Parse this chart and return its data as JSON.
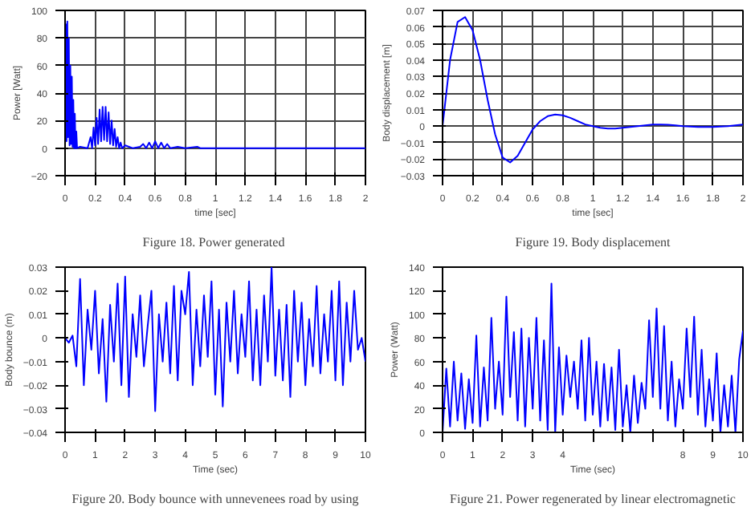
{
  "chart_data": [
    {
      "type": "line",
      "title": "Figure 18.  Power generated",
      "xlabel": "time [sec]",
      "ylabel": "Power [Watt]",
      "xlim": [
        0,
        2
      ],
      "ylim": [
        -20,
        100
      ],
      "xticks": [
        0,
        0.2,
        0.4,
        0.6,
        0.8,
        1,
        1.2,
        1.4,
        1.6,
        1.8,
        2
      ],
      "yticks": [
        -20,
        0,
        20,
        40,
        60,
        80,
        100
      ],
      "grid": true,
      "series": [
        {
          "color": "#0000ff",
          "x": [
            0,
            0.005,
            0.01,
            0.015,
            0.02,
            0.025,
            0.03,
            0.035,
            0.04,
            0.045,
            0.05,
            0.055,
            0.06,
            0.065,
            0.07,
            0.075,
            0.08,
            0.1,
            0.15,
            0.17,
            0.18,
            0.19,
            0.2,
            0.21,
            0.22,
            0.23,
            0.24,
            0.25,
            0.26,
            0.27,
            0.28,
            0.29,
            0.3,
            0.31,
            0.32,
            0.33,
            0.34,
            0.35,
            0.36,
            0.37,
            0.38,
            0.4,
            0.45,
            0.5,
            0.52,
            0.54,
            0.56,
            0.58,
            0.6,
            0.62,
            0.64,
            0.66,
            0.68,
            0.7,
            0.75,
            0.8,
            0.88,
            0.9,
            1.0,
            1.5,
            2.0
          ],
          "values": [
            0,
            90,
            5,
            92,
            8,
            80,
            2,
            60,
            3,
            52,
            1,
            35,
            0,
            25,
            0,
            12,
            0,
            1,
            0,
            8,
            0,
            15,
            2,
            22,
            3,
            28,
            5,
            30,
            6,
            30,
            5,
            26,
            3,
            20,
            2,
            14,
            1,
            8,
            0,
            4,
            0,
            2,
            0,
            1,
            3,
            0,
            4,
            0,
            5,
            0,
            4,
            0,
            3,
            0,
            1,
            0,
            1,
            0,
            0,
            0,
            0
          ]
        }
      ]
    },
    {
      "type": "line",
      "title": "Figure 19. Body displacement",
      "xlabel": "time [sec]",
      "ylabel": "Body displacement [m]",
      "xlim": [
        0,
        2
      ],
      "ylim": [
        -0.03,
        0.07
      ],
      "xticks": [
        0,
        0.2,
        0.4,
        0.6,
        0.8,
        1,
        1.2,
        1.4,
        1.6,
        1.8,
        2
      ],
      "yticks": [
        -0.03,
        -0.02,
        -0.01,
        0,
        0.01,
        0.02,
        0.03,
        0.04,
        0.05,
        0.06,
        0.07
      ],
      "grid": true,
      "series": [
        {
          "color": "#0000ff",
          "x": [
            0,
            0.05,
            0.1,
            0.15,
            0.2,
            0.25,
            0.3,
            0.35,
            0.4,
            0.45,
            0.5,
            0.55,
            0.6,
            0.65,
            0.7,
            0.75,
            0.8,
            0.85,
            0.9,
            0.95,
            1.0,
            1.05,
            1.1,
            1.15,
            1.2,
            1.25,
            1.3,
            1.35,
            1.4,
            1.45,
            1.5,
            1.55,
            1.6,
            1.65,
            1.7,
            1.75,
            1.8,
            1.85,
            1.9,
            1.95,
            2.0
          ],
          "values": [
            0,
            0.04,
            0.063,
            0.066,
            0.058,
            0.04,
            0.016,
            -0.005,
            -0.019,
            -0.022,
            -0.018,
            -0.01,
            -0.002,
            0.003,
            0.006,
            0.007,
            0.0065,
            0.005,
            0.003,
            0.001,
            0,
            -0.001,
            -0.0015,
            -0.0015,
            -0.001,
            -0.0005,
            0,
            0.0005,
            0.001,
            0.001,
            0.0008,
            0.0005,
            0,
            -0.0003,
            -0.0005,
            -0.0005,
            -0.0005,
            -0.0003,
            0,
            0.0005,
            0.001
          ]
        }
      ]
    },
    {
      "type": "line",
      "title": "Figure 20. Body bounce with unnevenees road by using",
      "xlabel": "Time (sec)",
      "ylabel": "Body bounce (m)",
      "xlim": [
        0,
        10
      ],
      "ylim": [
        -0.04,
        0.03
      ],
      "xticks": [
        0,
        1,
        2,
        3,
        4,
        5,
        6,
        7,
        8,
        9,
        10
      ],
      "yticks": [
        -0.04,
        -0.03,
        -0.02,
        -0.01,
        0,
        0.01,
        0.02,
        0.03
      ],
      "grid": false,
      "series": [
        {
          "color": "#0000ff",
          "x": [
            0,
            0.125,
            0.25,
            0.375,
            0.5,
            0.625,
            0.75,
            0.875,
            1,
            1.125,
            1.25,
            1.375,
            1.5,
            1.625,
            1.75,
            1.875,
            2,
            2.125,
            2.25,
            2.375,
            2.5,
            2.625,
            2.75,
            2.875,
            3,
            3.125,
            3.25,
            3.375,
            3.5,
            3.625,
            3.75,
            3.875,
            4,
            4.125,
            4.25,
            4.375,
            4.5,
            4.625,
            4.75,
            4.875,
            5,
            5.125,
            5.25,
            5.375,
            5.5,
            5.625,
            5.75,
            5.875,
            6,
            6.125,
            6.25,
            6.375,
            6.5,
            6.625,
            6.75,
            6.875,
            7,
            7.125,
            7.25,
            7.375,
            7.5,
            7.625,
            7.75,
            7.875,
            8,
            8.125,
            8.25,
            8.375,
            8.5,
            8.625,
            8.75,
            8.875,
            9,
            9.125,
            9.25,
            9.375,
            9.5,
            9.625,
            9.75,
            9.875,
            10
          ],
          "values": [
            0,
            -0.002,
            0.001,
            -0.012,
            0.025,
            -0.02,
            0.012,
            -0.005,
            0.02,
            -0.015,
            0.008,
            -0.027,
            0.014,
            -0.01,
            0.023,
            -0.02,
            0.026,
            -0.025,
            0.01,
            -0.008,
            0.018,
            -0.012,
            0.005,
            0.02,
            -0.031,
            0.01,
            -0.01,
            0.015,
            -0.015,
            0.022,
            -0.018,
            0.02,
            0.01,
            0.028,
            -0.02,
            0.012,
            -0.012,
            0.018,
            -0.008,
            0.024,
            -0.024,
            0.012,
            -0.029,
            0.015,
            -0.01,
            0.02,
            -0.015,
            0.01,
            -0.008,
            0.024,
            -0.018,
            0.012,
            -0.02,
            0.018,
            -0.01,
            0.03,
            -0.016,
            0.012,
            -0.018,
            0.014,
            -0.025,
            0.02,
            -0.01,
            0.015,
            -0.02,
            0.008,
            -0.012,
            0.022,
            -0.015,
            0.01,
            -0.01,
            0.02,
            -0.018,
            0.024,
            -0.02,
            0.015,
            -0.01,
            0.02,
            -0.005,
            0.0,
            -0.01
          ]
        }
      ]
    },
    {
      "type": "line",
      "title": "Figure 21. Power regenerated by linear electromagnetic",
      "xlabel": "Time (sec)",
      "ylabel": "Power (Watt)",
      "xlim": [
        0,
        10
      ],
      "ylim": [
        0,
        140
      ],
      "xticks": [
        0,
        1,
        2,
        3,
        4,
        {
          "value": 5,
          "label": null
        },
        {
          "value": 6,
          "label": null
        },
        {
          "value": 7,
          "label": null
        },
        8,
        9,
        10
      ],
      "yticks": [
        0,
        20,
        40,
        60,
        80,
        100,
        120,
        140
      ],
      "grid": false,
      "series": [
        {
          "color": "#0000ff",
          "x": [
            0,
            0.125,
            0.25,
            0.375,
            0.5,
            0.625,
            0.75,
            0.875,
            1,
            1.125,
            1.25,
            1.375,
            1.5,
            1.625,
            1.75,
            1.875,
            2,
            2.125,
            2.25,
            2.375,
            2.5,
            2.625,
            2.75,
            2.875,
            3,
            3.125,
            3.25,
            3.375,
            3.5,
            3.625,
            3.75,
            3.875,
            4,
            4.125,
            4.25,
            4.375,
            4.5,
            4.625,
            4.75,
            4.875,
            5,
            5.125,
            5.25,
            5.375,
            5.5,
            5.625,
            5.75,
            5.875,
            6,
            6.125,
            6.25,
            6.375,
            6.5,
            6.625,
            6.75,
            6.875,
            7,
            7.125,
            7.25,
            7.375,
            7.5,
            7.625,
            7.75,
            7.875,
            8,
            8.125,
            8.25,
            8.375,
            8.5,
            8.625,
            8.75,
            8.875,
            9,
            9.125,
            9.25,
            9.375,
            9.5,
            9.625,
            9.75,
            9.875,
            10
          ],
          "values": [
            0,
            54,
            5,
            60,
            10,
            50,
            3,
            45,
            8,
            82,
            5,
            55,
            10,
            97,
            20,
            60,
            15,
            115,
            30,
            85,
            10,
            88,
            5,
            80,
            20,
            97,
            10,
            78,
            2,
            126,
            0,
            72,
            15,
            65,
            30,
            60,
            20,
            78,
            10,
            80,
            15,
            60,
            5,
            58,
            10,
            55,
            2,
            70,
            5,
            40,
            0,
            48,
            8,
            42,
            20,
            95,
            30,
            105,
            20,
            90,
            10,
            60,
            5,
            45,
            20,
            88,
            30,
            98,
            15,
            70,
            5,
            45,
            10,
            67,
            0,
            40,
            5,
            48,
            0,
            62,
            86
          ]
        }
      ]
    }
  ]
}
